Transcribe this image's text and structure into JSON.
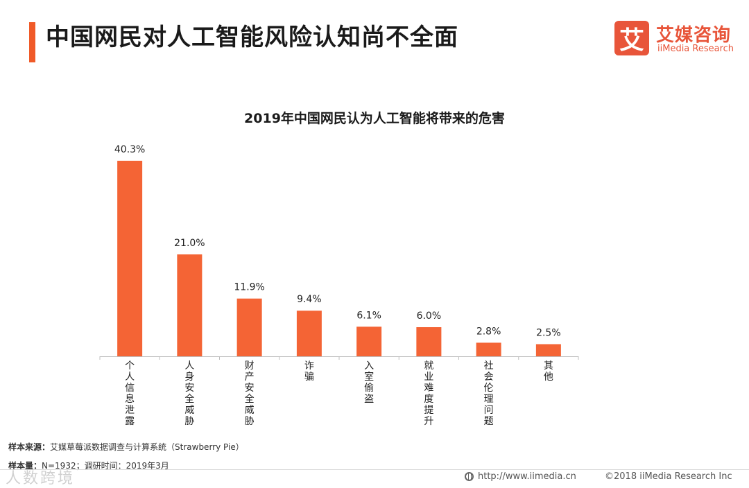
{
  "header": {
    "title": "中国网民对人工智能风险认知尚不全面"
  },
  "logo": {
    "mark": "艾",
    "name_cn": "艾媒咨询",
    "name_en": "iiMedia Research"
  },
  "chart_data": {
    "type": "bar",
    "title": "2019年中国网民认为人工智能将带来的危害",
    "categories": [
      "个人信息泄露",
      "人身安全威胁",
      "财产安全威胁",
      "诈骗",
      "入室偷盗",
      "就业难度提升",
      "社会伦理问题",
      "其他"
    ],
    "values": [
      40.3,
      21.0,
      11.9,
      9.4,
      6.1,
      6.0,
      2.8,
      2.5
    ],
    "value_labels": [
      "40.3%",
      "21.0%",
      "11.9%",
      "9.4%",
      "6.1%",
      "6.0%",
      "2.8%",
      "2.5%"
    ],
    "ylim": [
      0,
      42
    ],
    "xlabel": "",
    "ylabel": "",
    "bar_color": "#f46435"
  },
  "notes": {
    "source_label": "样本来源：",
    "source_text": "艾媒草莓派数据调查与计算系统（Strawberry Pie）",
    "sample_label": "样本量：",
    "sample_text": "N=1932；调研时间：2019年3月"
  },
  "watermark": "人数跨境",
  "footer": {
    "url": "http://www.iimedia.cn",
    "copyright": "©2018  iiMedia Research  Inc"
  }
}
